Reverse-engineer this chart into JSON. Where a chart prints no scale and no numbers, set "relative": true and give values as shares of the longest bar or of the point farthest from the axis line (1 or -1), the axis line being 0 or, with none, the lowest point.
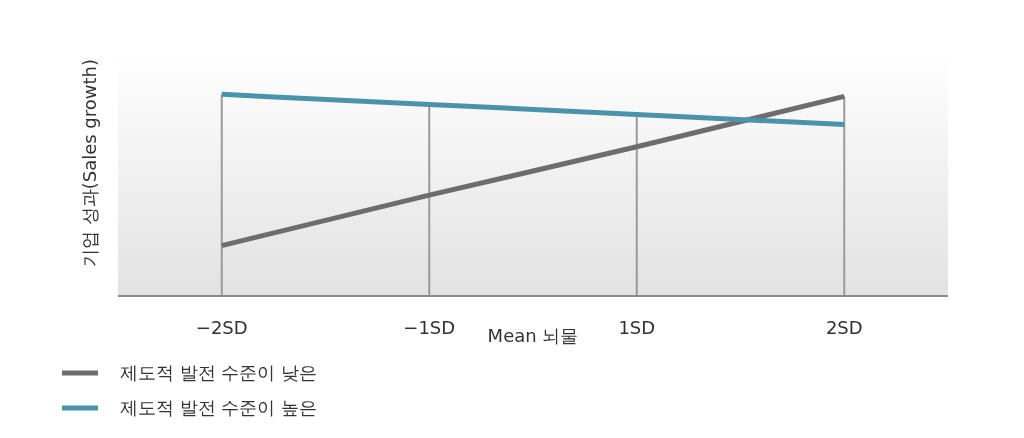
{
  "chart_data": {
    "type": "line",
    "relative": true,
    "xlabel": "Mean 뇌물",
    "ylabel": "기업 성과(Sales growth)",
    "categories": [
      "−2SD",
      "−1SD",
      "1SD",
      "2SD"
    ],
    "grid": "x",
    "legend": "bottom left",
    "marker": "none",
    "line_style": "solid",
    "series": [
      {
        "name": "제도적 발전 수준이 낮은",
        "color": "#6d6d6d",
        "values": [
          0.25,
          0.5,
          0.74,
          0.99
        ]
      },
      {
        "name": "제도적 발전 수준이 높은",
        "color": "#4a93aa",
        "values": [
          1,
          0.95,
          0.9,
          0.85
        ]
      }
    ]
  }
}
